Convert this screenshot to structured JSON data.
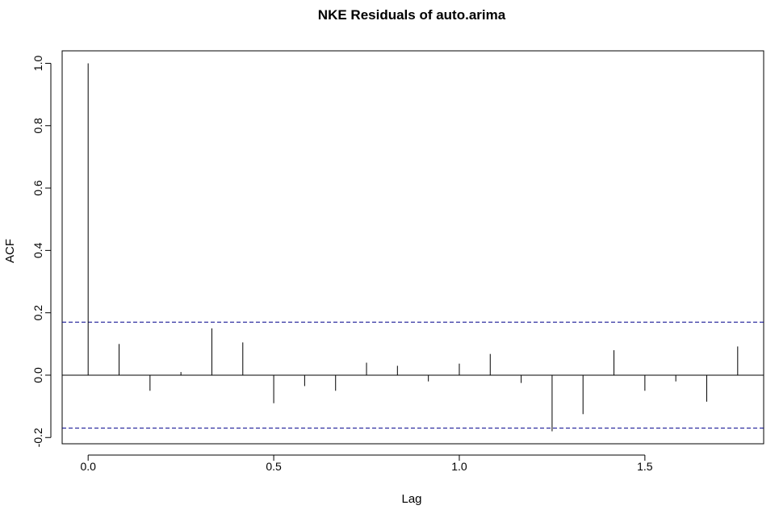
{
  "chart_data": {
    "type": "bar",
    "title": "NKE Residuals of auto.arima",
    "xlabel": "Lag",
    "ylabel": "ACF",
    "xlim": [
      -0.07,
      1.82
    ],
    "ylim": [
      -0.22,
      1.04
    ],
    "x_ticks": [
      0.0,
      0.5,
      1.0,
      1.5
    ],
    "x_tick_labels": [
      "0.0",
      "0.5",
      "1.0",
      "1.5"
    ],
    "y_ticks": [
      -0.2,
      0.0,
      0.2,
      0.4,
      0.6,
      0.8,
      1.0
    ],
    "y_tick_labels": [
      "-0.2",
      "0.0",
      "0.2",
      "0.4",
      "0.6",
      "0.8",
      "1.0"
    ],
    "confidence_bound": 0.17,
    "bound_color": "#00008b",
    "series": [
      {
        "x": [
          0.0,
          0.0833,
          0.1667,
          0.25,
          0.3333,
          0.4167,
          0.5,
          0.5833,
          0.6667,
          0.75,
          0.8333,
          0.9167,
          1.0,
          1.0833,
          1.1667,
          1.25,
          1.3333,
          1.4167,
          1.5,
          1.5833,
          1.6667,
          1.75
        ],
        "values": [
          1.0,
          0.1,
          -0.05,
          0.01,
          0.15,
          0.105,
          -0.09,
          -0.035,
          -0.05,
          0.04,
          0.03,
          -0.02,
          0.037,
          0.068,
          -0.025,
          -0.18,
          -0.125,
          0.08,
          -0.05,
          -0.02,
          -0.085,
          0.092
        ]
      }
    ]
  }
}
